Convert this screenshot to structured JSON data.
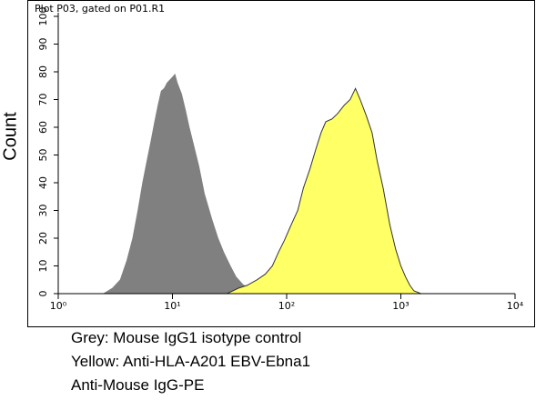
{
  "chart_data": {
    "type": "area",
    "title": "Plot P03, gated on P01.R1",
    "y_label": "Count",
    "xscale": "log",
    "xlim": [
      1,
      10000
    ],
    "xticks": [
      {
        "value": 1,
        "label": "10⁰"
      },
      {
        "value": 10,
        "label": "10¹"
      },
      {
        "value": 100,
        "label": "10²"
      },
      {
        "value": 1000,
        "label": "10³"
      },
      {
        "value": 10000,
        "label": "10⁴"
      }
    ],
    "ylim": [
      0,
      100
    ],
    "yticks": [
      0,
      10,
      20,
      30,
      40,
      50,
      60,
      70,
      80,
      90,
      100
    ],
    "series": [
      {
        "color": "#808080",
        "stroke": "#808080",
        "x": [
          2.5,
          3,
          3.5,
          4,
          4.5,
          5,
          5.5,
          6,
          6.5,
          7,
          7.5,
          8,
          8.5,
          9,
          10,
          10.5,
          11,
          12,
          13,
          14,
          15,
          17,
          19,
          22,
          25,
          28,
          32,
          36,
          42,
          50,
          60
        ],
        "values": [
          0,
          2,
          5,
          12,
          20,
          30,
          40,
          48,
          55,
          62,
          68,
          73,
          74,
          76,
          78,
          79,
          76,
          72,
          66,
          60,
          55,
          46,
          36,
          27,
          20,
          15,
          10,
          6,
          3,
          2,
          0
        ]
      },
      {
        "color": "#ffff66",
        "stroke": "#333333",
        "x": [
          30,
          38,
          45,
          55,
          65,
          75,
          85,
          95,
          110,
          125,
          140,
          160,
          180,
          200,
          220,
          250,
          280,
          320,
          360,
          400,
          440,
          500,
          560,
          620,
          700,
          800,
          900,
          1000,
          1100,
          1200,
          1300,
          1500
        ],
        "values": [
          0,
          2,
          3,
          5,
          7,
          10,
          15,
          19,
          25,
          30,
          38,
          45,
          52,
          58,
          62,
          63,
          65,
          68,
          70,
          74,
          70,
          64,
          58,
          48,
          38,
          25,
          16,
          10,
          6,
          3,
          1,
          0
        ]
      }
    ],
    "caption_lines": [
      "Grey: Mouse IgG1 isotype control",
      "Yellow: Anti-HLA-A201 EBV-Ebna1",
      "Anti-Mouse IgG-PE"
    ]
  }
}
